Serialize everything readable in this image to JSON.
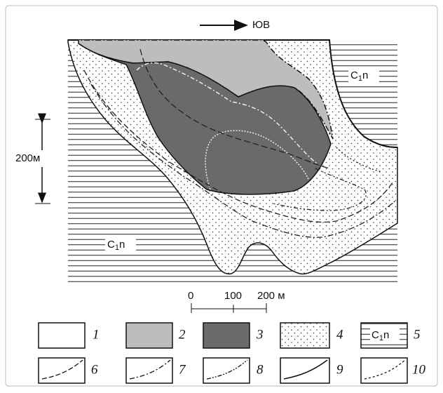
{
  "direction": "ЮВ",
  "vertical_scale": "200м",
  "formation": {
    "base": "C",
    "sub": "1",
    "rest": "n"
  },
  "scale_bar": [
    "0",
    "100",
    "200 м"
  ],
  "legend": [
    "1",
    "2",
    "3",
    "4",
    "5",
    "6",
    "7",
    "8",
    "9",
    "10"
  ]
}
